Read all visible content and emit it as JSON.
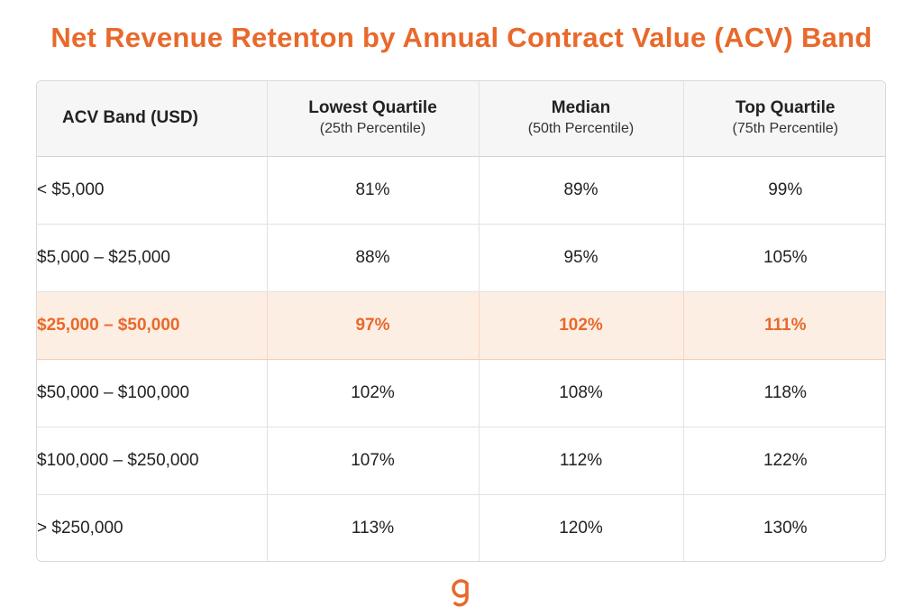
{
  "colors": {
    "accent": "#e8692b",
    "highlight_bg": "#fdeee3",
    "header_bg": "#f6f6f6",
    "text": "#222222"
  },
  "chart_data": {
    "type": "table",
    "title": "Net Revenue Retenton by Annual Contract Value (ACV) Band",
    "columns": [
      {
        "label": "ACV Band (USD)",
        "sub": ""
      },
      {
        "label": "Lowest Quartile",
        "sub": "(25th Percentile)"
      },
      {
        "label": "Median",
        "sub": "(50th Percentile)"
      },
      {
        "label": "Top Quartile",
        "sub": "(75th Percentile)"
      }
    ],
    "rows": [
      {
        "band": "< $5,000",
        "values": [
          "81%",
          "89%",
          "99%"
        ],
        "highlighted": false
      },
      {
        "band": "$5,000 – $25,000",
        "values": [
          "88%",
          "95%",
          "105%"
        ],
        "highlighted": false
      },
      {
        "band": "$25,000 – $50,000",
        "values": [
          "97%",
          "102%",
          "111%"
        ],
        "highlighted": true
      },
      {
        "band": "$50,000 – $100,000",
        "values": [
          "102%",
          "108%",
          "118%"
        ],
        "highlighted": false
      },
      {
        "band": "$100,000 – $250,000",
        "values": [
          "107%",
          "112%",
          "122%"
        ],
        "highlighted": false
      },
      {
        "band": "> $250,000",
        "values": [
          "113%",
          "120%",
          "130%"
        ],
        "highlighted": false
      }
    ]
  },
  "logo": {
    "icon": "brand-g-logo-icon"
  }
}
